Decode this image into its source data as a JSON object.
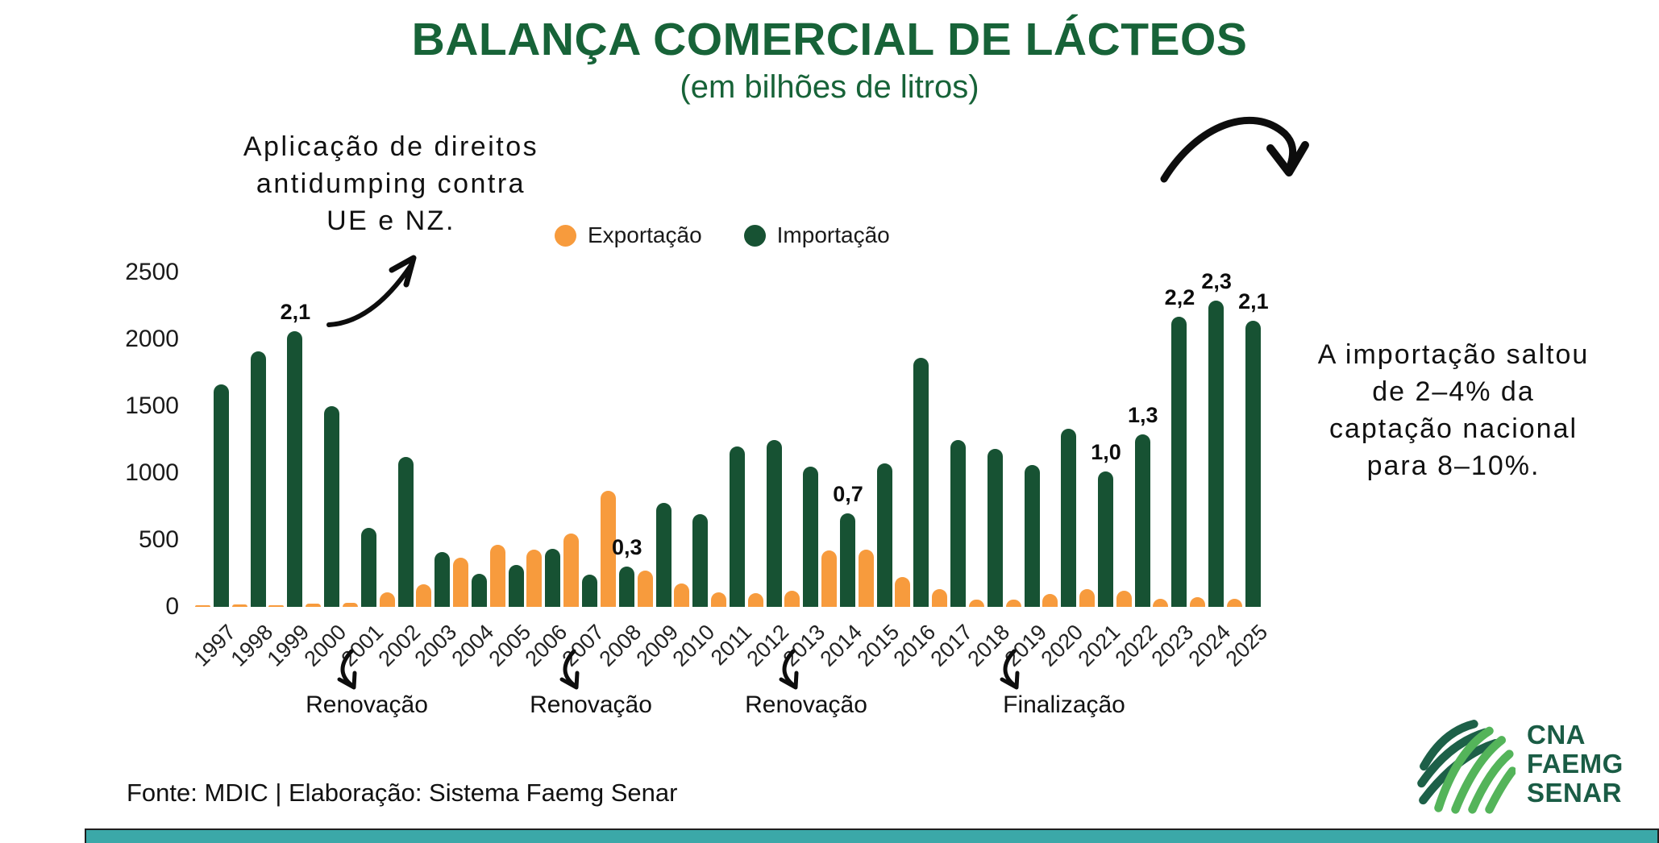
{
  "title": "BALANÇA COMERCIAL DE LÁCTEOS",
  "subtitle": "(em bilhões de litros)",
  "legend": {
    "export_label": "Exportação",
    "import_label": "Importação"
  },
  "annotations": {
    "left": "Aplicação de direitos\nantidumping contra\nUE e NZ.",
    "right": "A importação saltou\nde 2–4% da\ncaptação nacional\npara 8–10%.",
    "timeline": [
      {
        "label": "Renovação",
        "from_year": "2001"
      },
      {
        "label": "Renovação",
        "from_year": "2007"
      },
      {
        "label": "Renovação",
        "from_year": "2013"
      },
      {
        "label": "Finalização",
        "from_year": "2019"
      }
    ]
  },
  "footer": {
    "source": "Fonte: MDIC | Elaboração: Sistema Faemg Senar"
  },
  "logo": {
    "lines": [
      "CNA",
      "FAEMG",
      "SENAR"
    ]
  },
  "colors": {
    "title_green": "#176338",
    "import_green": "#175233",
    "export_orange": "#F79B3D",
    "footer_teal": "#3BA8A8",
    "logo_dark": "#1D6048",
    "logo_light": "#54B45A",
    "ink": "#0d0d0d"
  },
  "chart_data": {
    "type": "bar",
    "title": "Balança comercial de lácteos (em bilhões de litros)",
    "xlabel": "",
    "ylabel": "",
    "ylim": [
      0,
      2500
    ],
    "yticks": [
      0,
      500,
      1000,
      1500,
      2000,
      2500
    ],
    "grid": false,
    "legend_position": "top",
    "categories": [
      1997,
      1998,
      1999,
      2000,
      2001,
      2002,
      2003,
      2004,
      2005,
      2006,
      2007,
      2008,
      2009,
      2010,
      2011,
      2012,
      2013,
      2014,
      2015,
      2016,
      2017,
      2018,
      2019,
      2020,
      2021,
      2022,
      2023,
      2024,
      2025
    ],
    "series": [
      {
        "name": "Exportação",
        "color": "#F79B3D",
        "values": [
          15,
          20,
          15,
          25,
          30,
          110,
          170,
          365,
          465,
          425,
          550,
          870,
          270,
          175,
          110,
          100,
          120,
          420,
          430,
          220,
          130,
          55,
          55,
          95,
          130,
          120,
          60,
          75,
          60
        ]
      },
      {
        "name": "Importação",
        "color": "#175233",
        "values": [
          1660,
          1910,
          2060,
          1500,
          590,
          1120,
          410,
          250,
          315,
          435,
          240,
          300,
          775,
          690,
          1200,
          1250,
          1050,
          700,
          1070,
          1860,
          1250,
          1180,
          1060,
          1330,
          1010,
          1290,
          2170,
          2290,
          2140
        ],
        "bar_labels": [
          null,
          null,
          "2,1",
          null,
          null,
          null,
          null,
          null,
          null,
          null,
          null,
          "0,3",
          null,
          null,
          null,
          null,
          null,
          "0,7",
          null,
          null,
          null,
          null,
          null,
          null,
          "1,0",
          "1,3",
          "2,2",
          "2,3",
          "2,1"
        ]
      }
    ]
  }
}
